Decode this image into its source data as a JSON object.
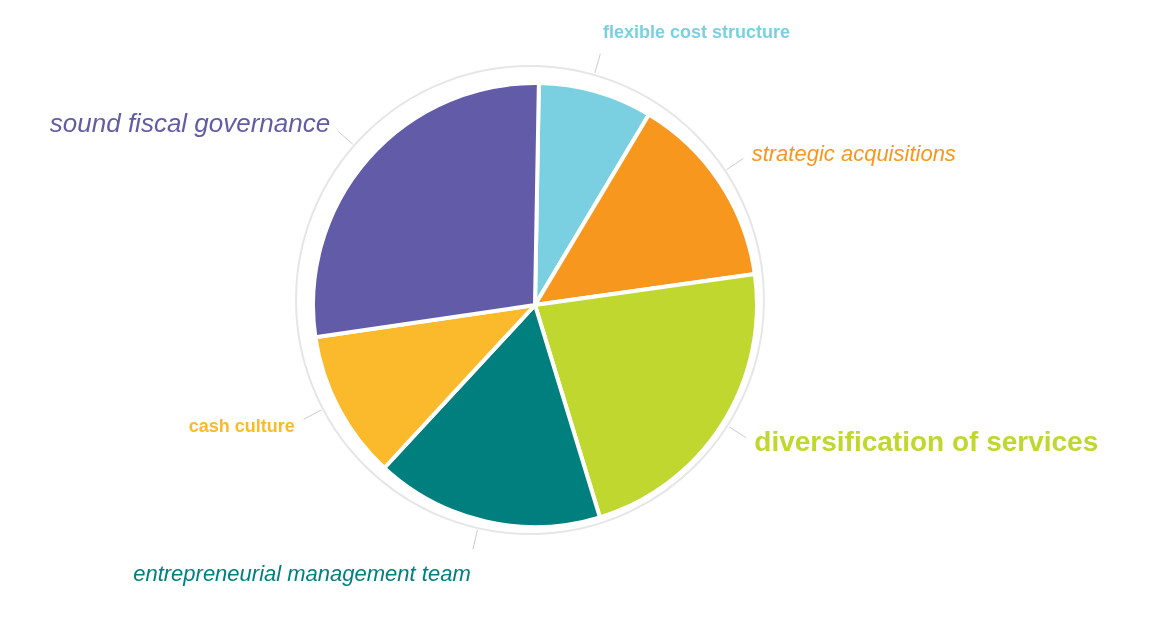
{
  "chart_data": {
    "type": "pie",
    "categories": [
      "flexible cost structure",
      "strategic acquisitions",
      "diversification of services",
      "entrepreneurial management team",
      "cash culture",
      "sound fiscal governance"
    ],
    "values": [
      8.3,
      14.2,
      22.5,
      16.6,
      10.8,
      27.6
    ],
    "colors": [
      "#7ad0e0",
      "#f7971e",
      "#c0d72f",
      "#007f7f",
      "#fbb92c",
      "#625ca8"
    ]
  }
}
